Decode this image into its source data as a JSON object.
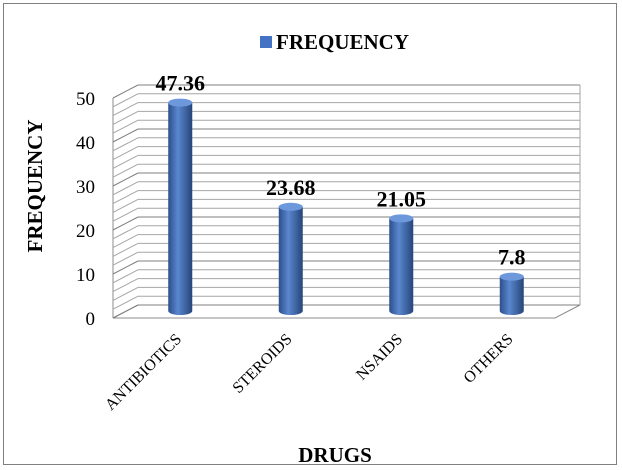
{
  "chart_data": {
    "type": "bar",
    "categories": [
      "ANTIBIOTICS",
      "STEROIDS",
      "NSAIDS",
      "OTHERS"
    ],
    "series": [
      {
        "name": "FREQUENCY",
        "values": [
          47.36,
          23.68,
          21.05,
          7.8
        ],
        "color": "#4472C4"
      }
    ],
    "data_labels": [
      "47.36",
      "23.68",
      "21.05",
      "7.8"
    ],
    "xlabel": "DRUGS",
    "ylabel": "FREQUENCY",
    "ylim": [
      0,
      50
    ],
    "yticks": [
      0,
      10,
      20,
      30,
      40,
      50
    ],
    "grid": true,
    "style": "3d-cylinder",
    "legend_position": "top"
  }
}
